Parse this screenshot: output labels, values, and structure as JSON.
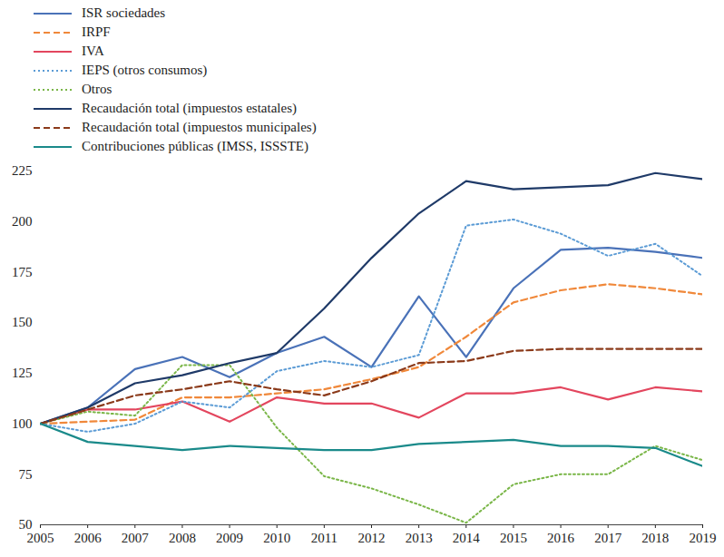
{
  "chart_data": {
    "type": "line",
    "x": [
      2005,
      2006,
      2007,
      2008,
      2009,
      2010,
      2011,
      2012,
      2013,
      2014,
      2015,
      2016,
      2017,
      2018,
      2019
    ],
    "xlim": [
      2005,
      2019
    ],
    "xticks": [
      2005,
      2006,
      2007,
      2008,
      2009,
      2010,
      2011,
      2012,
      2013,
      2014,
      2015,
      2016,
      2017,
      2018,
      2019
    ],
    "ylim": [
      50,
      225
    ],
    "yticks": [
      50,
      75,
      100,
      125,
      150,
      175,
      200,
      225
    ],
    "grid": false,
    "legend": "top-left",
    "series": [
      {
        "name": "ISR sociedades",
        "color": "#4a72b8",
        "line_style": "solid",
        "values": [
          100,
          108,
          127,
          133,
          123,
          135,
          143,
          128,
          163,
          133,
          167,
          186,
          187,
          185,
          182
        ]
      },
      {
        "name": "IRPF",
        "color": "#f0883a",
        "line_style": "dashed",
        "values": [
          100,
          101,
          102,
          113,
          113,
          115,
          117,
          122,
          128,
          143,
          160,
          166,
          169,
          167,
          164
        ]
      },
      {
        "name": "IVA",
        "color": "#e3465e",
        "line_style": "solid",
        "values": [
          100,
          107,
          107,
          111,
          101,
          113,
          110,
          110,
          103,
          115,
          115,
          118,
          112,
          118,
          116
        ]
      },
      {
        "name": "IEPS (otros consumos)",
        "color": "#5b9bd5",
        "line_style": "dotted",
        "values": [
          100,
          96,
          100,
          111,
          108,
          126,
          131,
          128,
          134,
          198,
          201,
          194,
          183,
          189,
          173
        ]
      },
      {
        "name": "Otros",
        "color": "#7ab648",
        "line_style": "dotted",
        "values": [
          100,
          106,
          104,
          129,
          129,
          98,
          74,
          68,
          60,
          51,
          70,
          75,
          75,
          89,
          82
        ]
      },
      {
        "name": "Recaudación total (impuestos estatales)",
        "color": "#1f3a68",
        "line_style": "solid",
        "values": [
          100,
          108,
          120,
          124,
          130,
          135,
          157,
          182,
          204,
          220,
          216,
          217,
          218,
          224,
          221
        ]
      },
      {
        "name": "Recaudación total (impuestos municipales)",
        "color": "#8b3a1a",
        "line_style": "dashed",
        "values": [
          100,
          107,
          114,
          117,
          121,
          117,
          114,
          121,
          130,
          131,
          136,
          137,
          137,
          137,
          137
        ]
      },
      {
        "name": "Contribuciones públicas (IMSS, ISSSTE)",
        "color": "#1a8a8a",
        "line_style": "solid",
        "values": [
          100,
          91,
          89,
          87,
          89,
          88,
          87,
          87,
          90,
          91,
          92,
          89,
          89,
          88,
          79
        ]
      }
    ]
  }
}
